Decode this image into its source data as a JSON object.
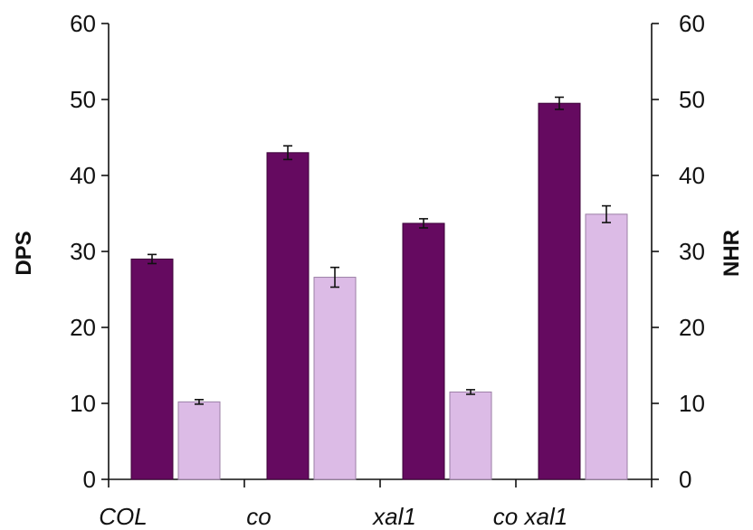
{
  "chart_data": {
    "type": "bar",
    "categories": [
      "COL",
      "co",
      "xal1",
      "co xal1"
    ],
    "series": [
      {
        "name": "",
        "axis": "left",
        "color": "#650a60",
        "values": [
          29.0,
          43.0,
          33.7,
          49.5
        ],
        "errors": [
          0.6,
          0.9,
          0.6,
          0.8
        ]
      },
      {
        "name": "",
        "axis": "right",
        "color": "#dcbbe6",
        "values": [
          10.2,
          26.6,
          11.5,
          34.9
        ],
        "errors": [
          0.3,
          1.3,
          0.3,
          1.1
        ]
      }
    ],
    "ylabel": "DPS",
    "y2label": "NHR",
    "ylim": [
      0,
      60
    ],
    "y2lim": [
      0,
      60
    ],
    "yticks": [
      0,
      10,
      20,
      30,
      40,
      50,
      60
    ],
    "y2ticks": [
      0,
      10,
      20,
      30,
      40,
      50,
      60
    ],
    "grid": false,
    "legend": "none"
  }
}
